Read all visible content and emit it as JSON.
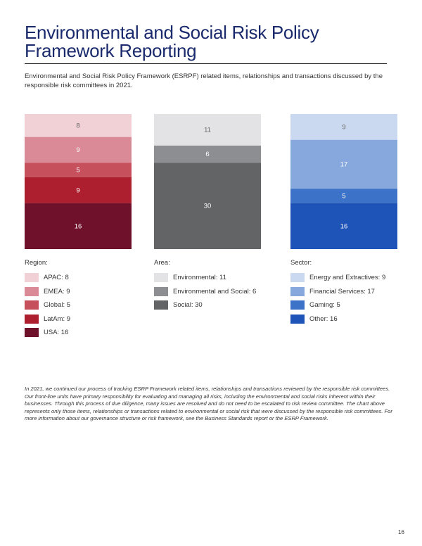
{
  "page": {
    "title": "Environmental and Social Risk Policy Framework Reporting",
    "subtitle": "Environmental and Social Risk Policy Framework (ESRPF) related items, relationships and transactions discussed by the responsible risk committees in 2021.",
    "footnote": "In 2021, we continued our process of tracking ESRP Framework related items, relationships and transactions reviewed by the responsible risk committees. Our front-line units have primary responsibility for evaluating and managing all risks, including the environmental and social risks inherent within their businesses. Through this process of due diligence, many issues are resolved and do not need to be escalated to risk review committee. The chart above represents only those items, relationships or transactions related to environmental or social risk that were discussed by the responsible risk committees. For more information about our governance structure or risk framework, see the Business Standards report or the ESRP Framework.",
    "page_number": "16"
  },
  "legends": [
    {
      "title": "Region:",
      "items": [
        {
          "label": "APAC: 8",
          "color": "#f1d0d6"
        },
        {
          "label": "EMEA: 9",
          "color": "#d98a96"
        },
        {
          "label": "Global: 5",
          "color": "#c7505d"
        },
        {
          "label": "LatAm: 9",
          "color": "#ad1f2e"
        },
        {
          "label": "USA: 16",
          "color": "#70112c"
        }
      ]
    },
    {
      "title": "Area:",
      "items": [
        {
          "label": "Environmental: 11",
          "color": "#e3e3e5"
        },
        {
          "label": "Environmental and Social: 6",
          "color": "#8d8e91"
        },
        {
          "label": "Social: 30",
          "color": "#636466"
        }
      ]
    },
    {
      "title": "Sector:",
      "items": [
        {
          "label": "Energy and Extractives: 9",
          "color": "#cbd9f0"
        },
        {
          "label": "Financial Services: 17",
          "color": "#86a8dd"
        },
        {
          "label": "Gaming: 5",
          "color": "#3c72c8"
        },
        {
          "label": "Other: 16",
          "color": "#1e54b7"
        }
      ]
    }
  ],
  "chart_data": {
    "type": "bar",
    "stacked": true,
    "total_per_bar": 47,
    "bars": [
      {
        "name": "Region",
        "segments": [
          {
            "name": "APAC",
            "value": 8,
            "color": "#f1d0d6",
            "label": "8"
          },
          {
            "name": "EMEA",
            "value": 9,
            "color": "#d98a96",
            "label": "9"
          },
          {
            "name": "Global",
            "value": 5,
            "color": "#c7505d",
            "label": "5"
          },
          {
            "name": "LatAm",
            "value": 9,
            "color": "#ad1f2e",
            "label": "9"
          },
          {
            "name": "USA",
            "value": 16,
            "color": "#70112c",
            "label": "16"
          }
        ]
      },
      {
        "name": "Area",
        "segments": [
          {
            "name": "Environmental",
            "value": 11,
            "color": "#e3e3e5",
            "label": "11"
          },
          {
            "name": "Environmental and Social",
            "value": 6,
            "color": "#8d8e91",
            "label": "6"
          },
          {
            "name": "Social",
            "value": 30,
            "color": "#636466",
            "label": "30"
          }
        ]
      },
      {
        "name": "Sector",
        "segments": [
          {
            "name": "Energy and Extractives",
            "value": 9,
            "color": "#cbd9f0",
            "label": "9"
          },
          {
            "name": "Financial Services",
            "value": 17,
            "color": "#86a8dd",
            "label": "17"
          },
          {
            "name": "Gaming",
            "value": 5,
            "color": "#3c72c8",
            "label": "5"
          },
          {
            "name": "Other",
            "value": 16,
            "color": "#1e54b7",
            "label": "16"
          }
        ]
      }
    ]
  }
}
